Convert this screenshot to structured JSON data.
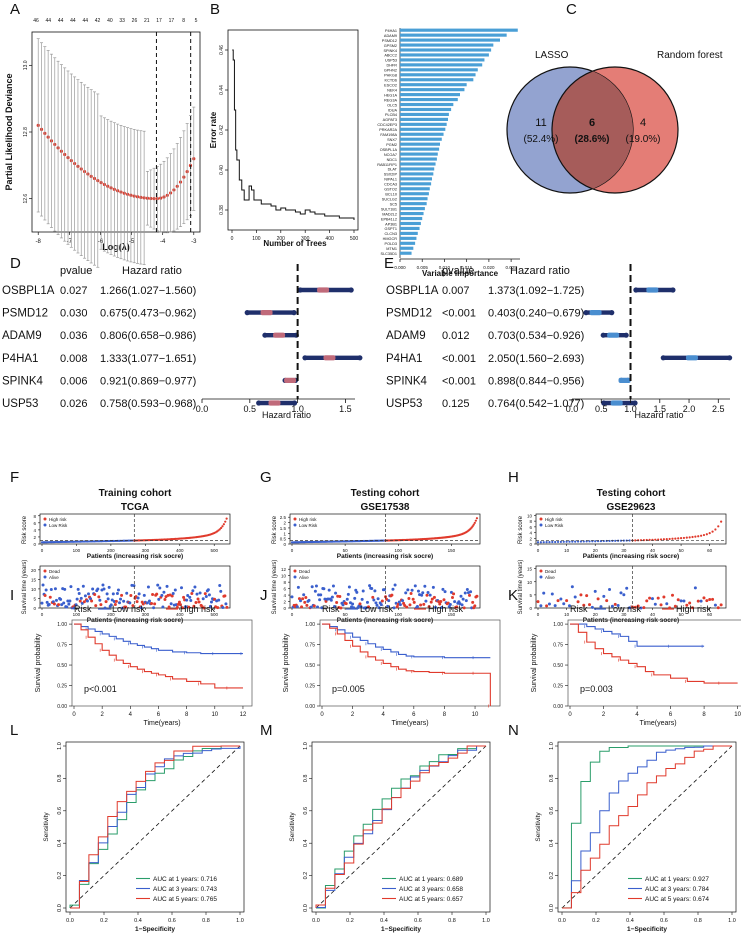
{
  "figure": {
    "panel_letters": [
      "A",
      "B",
      "C",
      "D",
      "E",
      "F",
      "G",
      "H",
      "I",
      "J",
      "K",
      "L",
      "M",
      "N"
    ]
  },
  "colors": {
    "red": "#e03a2c",
    "blue": "#3a5fcd",
    "steel": "#4a9fd6",
    "venn_left": "#8093c8",
    "venn_right": "#e47d76",
    "navy": "#1f2f6b",
    "green": "#2a9d6a",
    "ci": "#999999"
  },
  "chart_data": [
    {
      "panel": "A",
      "type": "scatter",
      "xlabel": "Log(λ)",
      "ylabel": "Partial Likelihood Deviance",
      "xticks": [
        "-8",
        "-7",
        "-6",
        "-5",
        "-4",
        "-3"
      ],
      "yticks": [
        "12.6",
        "12.8",
        "13.0"
      ],
      "top_ticks": [
        "46",
        "44",
        "44",
        "44",
        "44",
        "42",
        "40",
        "33",
        "26",
        "21",
        "17",
        "17",
        "8",
        "5"
      ],
      "xlim": [
        -8.2,
        -2.8
      ],
      "ylim": [
        12.5,
        13.1
      ],
      "vlines": [
        -4.2,
        -3.1
      ]
    },
    {
      "panel": "B-left",
      "type": "line",
      "xlabel": "Number of Trees",
      "ylabel": "Error rate",
      "xticks": [
        "0",
        "100",
        "200",
        "300",
        "400",
        "500"
      ],
      "yticks": [
        "0.38",
        "0.40",
        "0.42",
        "0.44",
        "0.46"
      ],
      "xlim": [
        0,
        500
      ],
      "ylim": [
        0.37,
        0.47
      ],
      "x": [
        1,
        5,
        10,
        15,
        20,
        30,
        40,
        50,
        60,
        70,
        80,
        90,
        100,
        120,
        140,
        160,
        180,
        200,
        220,
        240,
        260,
        280,
        300,
        320,
        340,
        360,
        380,
        400,
        420,
        440,
        460,
        480,
        500
      ],
      "y": [
        0.46,
        0.455,
        0.43,
        0.41,
        0.405,
        0.395,
        0.39,
        0.385,
        0.385,
        0.392,
        0.39,
        0.385,
        0.385,
        0.383,
        0.383,
        0.382,
        0.38,
        0.381,
        0.38,
        0.38,
        0.379,
        0.378,
        0.38,
        0.379,
        0.378,
        0.378,
        0.377,
        0.377,
        0.377,
        0.376,
        0.376,
        0.376,
        0.375
      ]
    },
    {
      "panel": "B-right",
      "type": "bar",
      "xlabel": "Variable Importance",
      "xticks": [
        "0.000",
        "0.005",
        "0.010",
        "0.015",
        "0.020",
        "0.025"
      ],
      "xlim": [
        0,
        0.027
      ],
      "categories": [
        "P4HA1",
        "ADAM9",
        "PSMD12",
        "GPSM2",
        "SPINK4",
        "ABCC2",
        "USP53",
        "DHFR",
        "GPHN2",
        "PHKG8",
        "KCTD6",
        "ESCO2",
        "NEK4",
        "HEG1A",
        "REG3A",
        "OLC5",
        "IDUA",
        "PLCB4",
        "AGPAT3",
        "CDC42EP3",
        "PRKAR2A",
        "FAM198A",
        "SNX7",
        "PGM2",
        "OSBPL1A",
        "NCOA7",
        "NDC1",
        "RAB11FIP1",
        "DLAT",
        "SSX2IP",
        "NIPAL1",
        "CDCA3",
        "GSTO2",
        "BCL10",
        "SUCLG2",
        "SC5",
        "SULT1B1",
        "MAD2L2",
        "EPB41L2",
        "AP3B1",
        "GSPT1",
        "CLCN3",
        "HMGCR",
        "POLD3",
        "MTM1",
        "SLC35D1"
      ],
      "values": [
        0.0265,
        0.024,
        0.0225,
        0.021,
        0.0205,
        0.02,
        0.019,
        0.0185,
        0.0175,
        0.017,
        0.0165,
        0.015,
        0.0145,
        0.0135,
        0.013,
        0.012,
        0.0115,
        0.011,
        0.0108,
        0.0105,
        0.0102,
        0.0098,
        0.0094,
        0.009,
        0.0088,
        0.0085,
        0.0083,
        0.008,
        0.0077,
        0.0075,
        0.0072,
        0.007,
        0.0067,
        0.0065,
        0.0062,
        0.006,
        0.0056,
        0.0053,
        0.005,
        0.0047,
        0.0044,
        0.004,
        0.0037,
        0.0034,
        0.003,
        0.0026
      ]
    },
    {
      "panel": "C",
      "type": "venn",
      "left_label": "LASSO",
      "right_label": "Random forest",
      "left_count": "11",
      "left_pct": "(52.4%)",
      "mid_count": "6",
      "mid_pct": "(28.6%)",
      "right_count": "4",
      "right_pct": "(19.0%)"
    },
    {
      "panel": "D",
      "type": "table",
      "col_pvalue": "pvalue",
      "col_hr": "Hazard ratio",
      "xlabel": "Hazard ratio",
      "xticks": [
        "0.0",
        "0.5",
        "1.0",
        "1.5"
      ],
      "xlim": [
        0,
        1.6
      ],
      "rows": [
        {
          "gene": "OSBPL1A",
          "p": "0.027",
          "hr_text": "1.266(1.027−1.560)",
          "hr": 1.266,
          "lo": 1.027,
          "hi": 1.56
        },
        {
          "gene": "PSMD12",
          "p": "0.030",
          "hr_text": "0.675(0.473−0.962)",
          "hr": 0.675,
          "lo": 0.473,
          "hi": 0.962
        },
        {
          "gene": "ADAM9",
          "p": "0.036",
          "hr_text": "0.806(0.658−0.986)",
          "hr": 0.806,
          "lo": 0.658,
          "hi": 0.986
        },
        {
          "gene": "P4HA1",
          "p": "0.008",
          "hr_text": "1.333(1.077−1.651)",
          "hr": 1.333,
          "lo": 1.077,
          "hi": 1.651
        },
        {
          "gene": "SPINK4",
          "p": "0.006",
          "hr_text": "0.921(0.869−0.977)",
          "hr": 0.921,
          "lo": 0.869,
          "hi": 0.977
        },
        {
          "gene": "USP53",
          "p": "0.026",
          "hr_text": "0.758(0.593−0.968)",
          "hr": 0.758,
          "lo": 0.593,
          "hi": 0.968
        }
      ]
    },
    {
      "panel": "E",
      "type": "table",
      "col_pvalue": "pvalue",
      "col_hr": "Hazard ratio",
      "xlabel": "Hazard ratio",
      "xticks": [
        "0.0",
        "0.5",
        "1.0",
        "1.5",
        "2.0",
        "2.5"
      ],
      "xlim": [
        0,
        2.7
      ],
      "rows": [
        {
          "gene": "OSBPL1A",
          "p": "0.007",
          "hr_text": "1.373(1.092−1.725)",
          "hr": 1.373,
          "lo": 1.092,
          "hi": 1.725
        },
        {
          "gene": "PSMD12",
          "p": "<0.001",
          "hr_text": "0.403(0.240−0.679)",
          "hr": 0.403,
          "lo": 0.24,
          "hi": 0.679
        },
        {
          "gene": "ADAM9",
          "p": "0.012",
          "hr_text": "0.703(0.534−0.926)",
          "hr": 0.703,
          "lo": 0.534,
          "hi": 0.926
        },
        {
          "gene": "P4HA1",
          "p": "<0.001",
          "hr_text": "2.050(1.560−2.693)",
          "hr": 2.05,
          "lo": 1.56,
          "hi": 2.693
        },
        {
          "gene": "SPINK4",
          "p": "<0.001",
          "hr_text": "0.898(0.844−0.956)",
          "hr": 0.898,
          "lo": 0.844,
          "hi": 0.956
        },
        {
          "gene": "USP53",
          "p": "0.125",
          "hr_text": "0.764(0.542−1.077)",
          "hr": 0.764,
          "lo": 0.542,
          "hi": 1.077
        }
      ]
    },
    {
      "panel": "F",
      "type": "scatter",
      "title": "Training cohort",
      "subtitle": "TCGA",
      "risk_ylabel": "Risk score",
      "surv_ylabel": "Survival time (years)",
      "xlabel": "Patients (increasing risk socre)",
      "risk_legend": [
        "High risk",
        "Low Risk"
      ],
      "surv_legend": [
        "Dead",
        "Alive"
      ],
      "n": 540,
      "cut": 268,
      "xticks": [
        "0",
        "100",
        "200",
        "300",
        "400",
        "500"
      ],
      "risk_yticks": [
        "0",
        "2",
        "4",
        "6",
        "8"
      ],
      "risk_ylim": [
        0,
        8.5
      ],
      "risk_max": 8.0,
      "surv_yticks": [
        "0",
        "5",
        "10",
        "15",
        "20"
      ],
      "surv_ylim": [
        0,
        22
      ]
    },
    {
      "panel": "G",
      "type": "scatter",
      "title": "Testing cohort",
      "subtitle": "GSE17538",
      "risk_ylabel": "Risk score",
      "surv_ylabel": "Survival time (years)",
      "xlabel": "Patients (increasing risk socre)",
      "risk_legend": [
        "High risk",
        "Low Risk"
      ],
      "surv_legend": [
        "Dead",
        "Alive"
      ],
      "n": 175,
      "cut": 88,
      "xticks": [
        "0",
        "50",
        "100",
        "150"
      ],
      "risk_yticks": [
        "0",
        "0.5",
        "1",
        "1.5",
        "2",
        "2.5"
      ],
      "risk_ylim": [
        0,
        2.8
      ],
      "risk_max": 2.6,
      "surv_yticks": [
        "0",
        "2",
        "4",
        "6",
        "8",
        "10",
        "12"
      ],
      "surv_ylim": [
        0,
        13
      ]
    },
    {
      "panel": "H",
      "type": "scatter",
      "title": "Testing cohort",
      "subtitle": "GSE29623",
      "risk_ylabel": "Risk score",
      "surv_ylabel": "Survival time (years)",
      "xlabel": "Patients (increasing risk socre)",
      "risk_legend": [
        "High risk",
        "Low Risk"
      ],
      "surv_legend": [
        "Dead",
        "Alive"
      ],
      "n": 65,
      "cut": 33,
      "xticks": [
        "0",
        "10",
        "20",
        "30",
        "40",
        "50",
        "60"
      ],
      "risk_yticks": [
        "0",
        "2",
        "4",
        "6",
        "8",
        "10"
      ],
      "risk_ylim": [
        0,
        10.5
      ],
      "risk_max": 10,
      "surv_yticks": [
        "0",
        "5",
        "10",
        "15"
      ],
      "surv_ylim": [
        0,
        16
      ]
    },
    {
      "panel": "I",
      "type": "line",
      "legend_title": "Risk",
      "legend": [
        "Low risk",
        "High risk"
      ],
      "pvalue": "p<0.001",
      "xlabel": "Time(years)",
      "ylabel": "Survival probability",
      "xticks": [
        "0",
        "2",
        "4",
        "6",
        "8",
        "10",
        "12"
      ],
      "yticks": [
        "0.00",
        "0.25",
        "0.50",
        "0.75",
        "1.00"
      ],
      "xlim": [
        0,
        12.5
      ],
      "low": {
        "t": [
          0,
          0.5,
          1,
          1.5,
          2,
          2.5,
          3,
          3.5,
          4,
          4.5,
          5,
          5.5,
          6,
          7,
          8,
          9,
          10,
          11,
          12
        ],
        "s": [
          1,
          0.97,
          0.94,
          0.91,
          0.88,
          0.85,
          0.82,
          0.79,
          0.76,
          0.74,
          0.72,
          0.7,
          0.68,
          0.66,
          0.65,
          0.64,
          0.64,
          0.64,
          0.64
        ]
      },
      "high": {
        "t": [
          0,
          0.5,
          1,
          1.5,
          2,
          2.5,
          3,
          3.5,
          4,
          4.5,
          5,
          5.5,
          6,
          6.5,
          7,
          8,
          9,
          10,
          11,
          12
        ],
        "s": [
          1,
          0.93,
          0.84,
          0.76,
          0.68,
          0.62,
          0.56,
          0.52,
          0.48,
          0.45,
          0.42,
          0.4,
          0.38,
          0.36,
          0.33,
          0.3,
          0.27,
          0.22,
          0.22,
          0.22
        ]
      }
    },
    {
      "panel": "J",
      "type": "line",
      "legend_title": "Risk",
      "legend": [
        "Low risk",
        "High risk"
      ],
      "pvalue": "p=0.005",
      "xlabel": "Time(years)",
      "ylabel": "Survival probability",
      "xticks": [
        "0",
        "2",
        "4",
        "6",
        "8",
        "10"
      ],
      "yticks": [
        "0.00",
        "0.25",
        "0.50",
        "0.75",
        "1.00"
      ],
      "xlim": [
        0,
        11.5
      ],
      "low": {
        "t": [
          0,
          0.5,
          1,
          1.5,
          2,
          2.5,
          3,
          3.5,
          4,
          4.5,
          5,
          5.5,
          6,
          7,
          8,
          9,
          10,
          11
        ],
        "s": [
          1,
          0.97,
          0.93,
          0.89,
          0.84,
          0.8,
          0.76,
          0.72,
          0.69,
          0.66,
          0.63,
          0.61,
          0.6,
          0.6,
          0.59,
          0.59,
          0.59,
          0.59
        ]
      },
      "high": {
        "t": [
          0,
          0.5,
          1,
          1.5,
          2,
          2.5,
          3,
          3.5,
          4,
          4.5,
          5,
          5.5,
          6,
          7,
          8,
          9,
          10,
          10.9,
          11
        ],
        "s": [
          1,
          0.95,
          0.88,
          0.8,
          0.73,
          0.66,
          0.6,
          0.56,
          0.52,
          0.48,
          0.45,
          0.43,
          0.42,
          0.41,
          0.4,
          0.4,
          0.4,
          0.4,
          0.0
        ]
      }
    },
    {
      "panel": "K",
      "type": "line",
      "legend_title": "Risk",
      "legend": [
        "Low risk",
        "High risk"
      ],
      "pvalue": "p=0.003",
      "xlabel": "Time(years)",
      "ylabel": "Survival probability",
      "xticks": [
        "0",
        "2",
        "4",
        "6",
        "8",
        "10"
      ],
      "yticks": [
        "0.00",
        "0.25",
        "0.50",
        "0.75",
        "1.00"
      ],
      "xlim": [
        0,
        10.5
      ],
      "low": {
        "t": [
          0,
          0.5,
          1,
          1.5,
          2,
          2.5,
          3,
          3.5,
          4,
          5,
          6,
          7,
          8
        ],
        "s": [
          1,
          1,
          0.97,
          0.94,
          0.91,
          0.88,
          0.85,
          0.79,
          0.73,
          0.73,
          0.73,
          0.73,
          0.73
        ]
      },
      "high": {
        "t": [
          0,
          0.5,
          1,
          1.5,
          2,
          2.5,
          3,
          3.5,
          4,
          4.5,
          5,
          6,
          7,
          8,
          9,
          10
        ],
        "s": [
          1,
          0.9,
          0.78,
          0.7,
          0.64,
          0.6,
          0.56,
          0.52,
          0.48,
          0.42,
          0.38,
          0.34,
          0.3,
          0.28,
          0.28,
          0.28
        ]
      }
    },
    {
      "panel": "L",
      "type": "line",
      "xlabel": "1−Specificity",
      "ylabel": "Sensitivity",
      "xticks": [
        "0.0",
        "0.2",
        "0.4",
        "0.6",
        "0.8",
        "1.0"
      ],
      "yticks": [
        "0.0",
        "0.2",
        "0.4",
        "0.6",
        "0.8",
        "1.0"
      ],
      "legend": [
        "AUC at 1 years: 0.716",
        "AUC at 3 years: 0.743",
        "AUC at 5 years: 0.765"
      ],
      "auc": [
        0.716,
        0.743,
        0.765
      ]
    },
    {
      "panel": "M",
      "type": "line",
      "xlabel": "1−Specificity",
      "ylabel": "Sensitivity",
      "xticks": [
        "0.0",
        "0.2",
        "0.4",
        "0.6",
        "0.8",
        "1.0"
      ],
      "yticks": [
        "0.0",
        "0.2",
        "0.4",
        "0.6",
        "0.8",
        "1.0"
      ],
      "legend": [
        "AUC at 1 years: 0.689",
        "AUC at 3 years: 0.658",
        "AUC at 5 years: 0.657"
      ],
      "auc": [
        0.689,
        0.658,
        0.657
      ]
    },
    {
      "panel": "N",
      "type": "line",
      "xlabel": "1−Specificity",
      "ylabel": "Sensitivity",
      "xticks": [
        "0.0",
        "0.2",
        "0.4",
        "0.6",
        "0.8",
        "1.0"
      ],
      "yticks": [
        "0.0",
        "0.2",
        "0.4",
        "0.6",
        "0.8",
        "1.0"
      ],
      "legend": [
        "AUC at 1 years: 0.927",
        "AUC at 3 years: 0.784",
        "AUC at 5 years: 0.674"
      ],
      "auc": [
        0.927,
        0.784,
        0.674
      ]
    }
  ]
}
